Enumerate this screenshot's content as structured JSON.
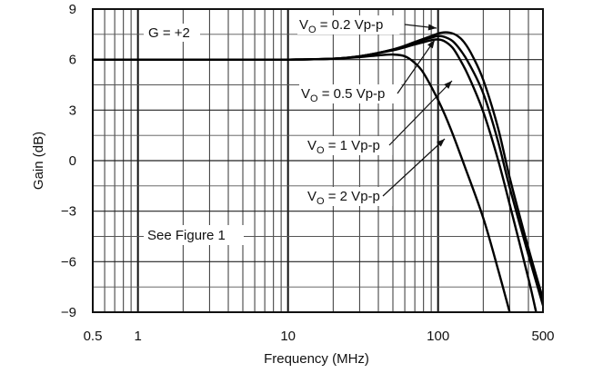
{
  "chart_data": {
    "type": "line",
    "xlabel": "Frequency (MHz)",
    "ylabel": "Gain (dB)",
    "x_scale": "log",
    "xlim": [
      0.5,
      500
    ],
    "ylim": [
      -9,
      9
    ],
    "grid": true,
    "x_tick_labels": [
      "0.5",
      "1",
      "10",
      "100",
      "500"
    ],
    "x_tick_values": [
      0.5,
      1,
      10,
      100,
      500
    ],
    "y_tick_labels": [
      "9",
      "6",
      "3",
      "0",
      "−3",
      "−6",
      "−9"
    ],
    "y_tick_values": [
      9,
      6,
      3,
      0,
      -3,
      -6,
      -9
    ],
    "annotations": [
      {
        "text": "G = +2"
      },
      {
        "text": "See Figure 1"
      }
    ],
    "series": [
      {
        "name": "VO = 0.2 Vp-p",
        "label_main": "V",
        "label_sub": "O",
        "label_rest": " = 0.2 Vp-p",
        "x": [
          0.5,
          1,
          5,
          10,
          20,
          30,
          50,
          70,
          90,
          105,
          120,
          135,
          150,
          170,
          200,
          250,
          300,
          400,
          500
        ],
        "y": [
          6,
          6,
          6,
          6,
          6.05,
          6.2,
          6.6,
          7.05,
          7.4,
          7.6,
          7.6,
          7.4,
          7.0,
          6.2,
          4.8,
          2.0,
          -1.0,
          -5.2,
          -8.2
        ]
      },
      {
        "name": "VO = 0.5 Vp-p",
        "label_main": "V",
        "label_sub": "O",
        "label_rest": " = 0.5 Vp-p",
        "x": [
          0.5,
          1,
          5,
          10,
          20,
          30,
          50,
          70,
          90,
          100,
          110,
          125,
          140,
          160,
          200,
          250,
          300,
          400,
          500
        ],
        "y": [
          6,
          6,
          6,
          6,
          6.05,
          6.2,
          6.6,
          7.0,
          7.3,
          7.4,
          7.35,
          7.1,
          6.6,
          5.8,
          4.0,
          1.2,
          -1.6,
          -5.6,
          -8.6
        ]
      },
      {
        "name": "VO = 1 Vp-p",
        "label_main": "V",
        "label_sub": "O",
        "label_rest": " = 1 Vp-p",
        "x": [
          0.5,
          1,
          5,
          10,
          20,
          30,
          50,
          70,
          90,
          100,
          110,
          125,
          140,
          160,
          200,
          250,
          300,
          400,
          450
        ],
        "y": [
          6,
          6,
          6,
          6,
          6.05,
          6.2,
          6.55,
          6.9,
          7.15,
          7.2,
          7.1,
          6.7,
          6.0,
          5.0,
          2.9,
          0.1,
          -2.6,
          -7.0,
          -9.0
        ]
      },
      {
        "name": "VO = 2 Vp-p",
        "label_main": "V",
        "label_sub": "O",
        "label_rest": " = 2 Vp-p",
        "x": [
          0.5,
          1,
          5,
          10,
          20,
          30,
          40,
          50,
          60,
          70,
          80,
          100,
          120,
          150,
          200,
          250,
          300
        ],
        "y": [
          6,
          6,
          6,
          6,
          6.05,
          6.15,
          6.25,
          6.3,
          6.2,
          5.8,
          5.2,
          3.6,
          2.0,
          -0.3,
          -3.4,
          -6.4,
          -9.0
        ]
      }
    ]
  }
}
